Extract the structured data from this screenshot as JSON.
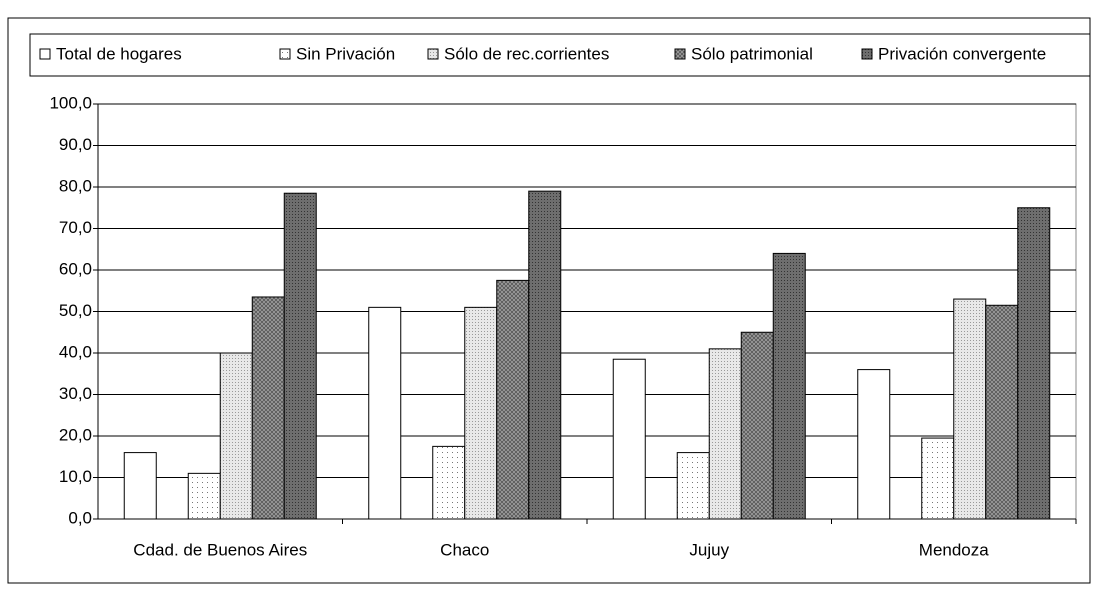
{
  "chart_data": {
    "type": "bar",
    "categories": [
      "Cdad. de Buenos Aires",
      "Chaco",
      "Jujuy",
      "Mendoza"
    ],
    "series": [
      {
        "name": "Total de hogares",
        "color": "#ffffff",
        "values": [
          16,
          51,
          38.5,
          36
        ]
      },
      {
        "name": "Sin Privación",
        "color": "#ffffff",
        "values": [
          11,
          17.5,
          16,
          19.5
        ]
      },
      {
        "name": "Sólo de rec.corrientes",
        "color": "#e8e8e8",
        "values": [
          40,
          51,
          41,
          53
        ]
      },
      {
        "name": "Sólo patrimonial",
        "color": "#a0a0a0",
        "values": [
          53.5,
          57.5,
          45,
          51.5
        ]
      },
      {
        "name": "Privación convergente",
        "color": "#6e6e6e",
        "values": [
          78.5,
          79,
          64,
          75
        ]
      }
    ],
    "ylim": [
      0,
      100
    ],
    "yticks": [
      {
        "value": 0,
        "label": "0,0"
      },
      {
        "value": 10,
        "label": "10,0"
      },
      {
        "value": 20,
        "label": "20,0"
      },
      {
        "value": 30,
        "label": "30,0"
      },
      {
        "value": 40,
        "label": "40,0"
      },
      {
        "value": 50,
        "label": "50,0"
      },
      {
        "value": 60,
        "label": "60,0"
      },
      {
        "value": 70,
        "label": "70,0"
      },
      {
        "value": 80,
        "label": "80,0"
      },
      {
        "value": 90,
        "label": "90,0"
      },
      {
        "value": 100,
        "label": "100,0"
      }
    ],
    "grid": true,
    "legend": "top"
  }
}
